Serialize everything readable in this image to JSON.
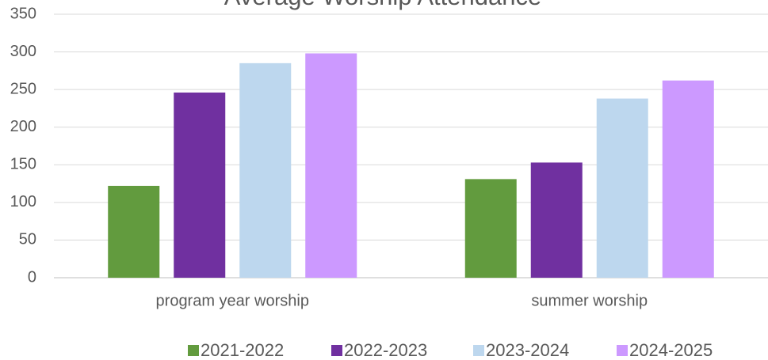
{
  "chart_data": {
    "type": "bar",
    "title": "Average Worship Attendance",
    "categories": [
      "program year worship",
      "summer worship"
    ],
    "series": [
      {
        "name": "2021-2022",
        "color": "#629b3e",
        "values": [
          122,
          131
        ]
      },
      {
        "name": "2022-2023",
        "color": "#7030a0",
        "values": [
          246,
          153
        ]
      },
      {
        "name": "2023-2024",
        "color": "#bdd7ee",
        "values": [
          285,
          238
        ]
      },
      {
        "name": "2024-2025",
        "color": "#cc99ff",
        "values": [
          298,
          262
        ]
      }
    ],
    "ylim": [
      0,
      350
    ],
    "yticks": [
      0,
      50,
      100,
      150,
      200,
      250,
      300,
      350
    ],
    "grid": true,
    "legend": "bottom"
  }
}
